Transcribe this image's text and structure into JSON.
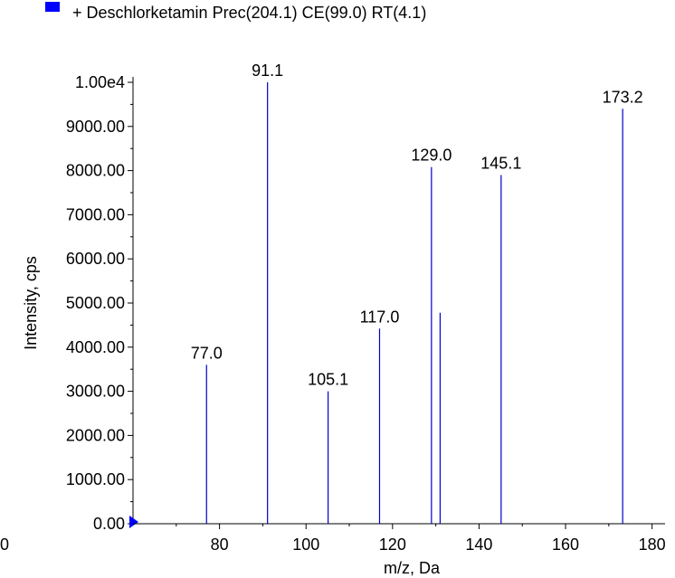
{
  "legend": {
    "label": "+ Deschlorketamin Prec(204.1) CE(99.0) RT(4.1)",
    "swatch_color": "#0000ff"
  },
  "chart_data": {
    "type": "bar",
    "title": "",
    "xlabel": "m/z, Da",
    "ylabel": "Intensity, cps",
    "xlim": [
      60,
      183
    ],
    "ylim": [
      0,
      10000
    ],
    "x_ticks": [
      80,
      100,
      120,
      140,
      160,
      180
    ],
    "x_tick_labels": [
      "80",
      "100",
      "120",
      "140",
      "160",
      "180"
    ],
    "partial_x_tick_label": "0",
    "y_ticks": [
      0,
      1000,
      2000,
      3000,
      4000,
      5000,
      6000,
      7000,
      8000,
      9000,
      10000
    ],
    "y_tick_labels": [
      "0.00",
      "1000.00",
      "2000.00",
      "3000.00",
      "4000.00",
      "5000.00",
      "6000.00",
      "7000.00",
      "8000.00",
      "9000.00",
      "1.00e4"
    ],
    "series_color": "#0000c8",
    "peaks": [
      {
        "mz": 77.0,
        "intensity": 3600,
        "label": "77.0"
      },
      {
        "mz": 91.1,
        "intensity": 10000,
        "label": "91.1"
      },
      {
        "mz": 105.1,
        "intensity": 3000,
        "label": "105.1"
      },
      {
        "mz": 117.0,
        "intensity": 4420,
        "label": "117.0"
      },
      {
        "mz": 129.0,
        "intensity": 8080,
        "label": "129.0"
      },
      {
        "mz": 131.0,
        "intensity": 4780,
        "label": ""
      },
      {
        "mz": 145.1,
        "intensity": 7900,
        "label": "145.1"
      },
      {
        "mz": 173.2,
        "intensity": 9400,
        "label": "173.2"
      }
    ]
  }
}
